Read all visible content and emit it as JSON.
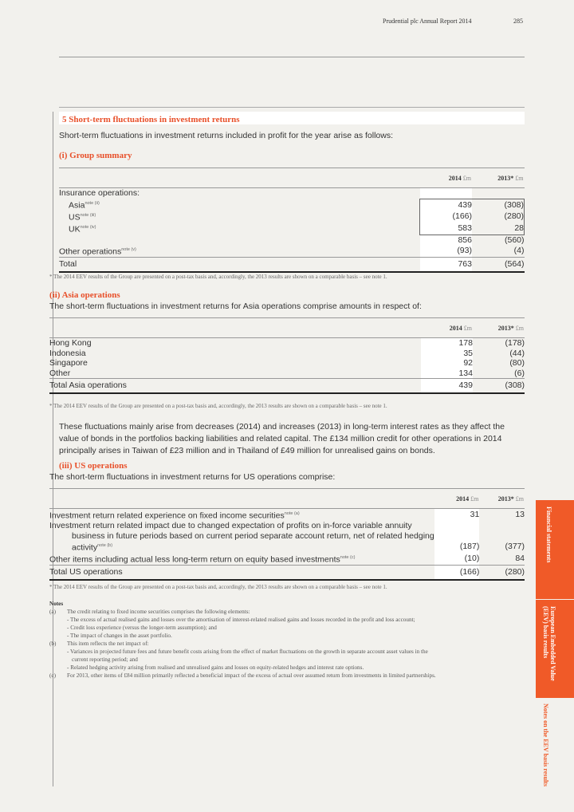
{
  "header": {
    "report": "Prudential plc  Annual Report 2014",
    "page": "285"
  },
  "section": {
    "title": "5 Short-term fluctuations in investment returns",
    "intro": "Short-term fluctuations in investment returns included in profit for the year arise as follows:"
  },
  "cols": {
    "y1": "2014",
    "y2": "2013*",
    "unit": "£m"
  },
  "group": {
    "title": "(i) Group summary",
    "heading": "Insurance operations:",
    "rows": [
      {
        "label": "Asia",
        "note": "note (ii)",
        "v1": "439",
        "v2": "(308)"
      },
      {
        "label": "US",
        "note": "note (iii)",
        "v1": "(166)",
        "v2": "(280)"
      },
      {
        "label": "UK",
        "note": "note (iv)",
        "v1": "583",
        "v2": "28"
      }
    ],
    "subtotal": {
      "v1": "856",
      "v2": "(560)"
    },
    "other": {
      "label": "Other operations",
      "note": "note (v)",
      "v1": "(93)",
      "v2": "(4)"
    },
    "total": {
      "label": "Total",
      "v1": "763",
      "v2": "(564)"
    }
  },
  "footnote": "* The 2014 EEV results of the Group are presented on a post-tax basis and, accordingly, the 2013 results are shown on a comparable basis – see note 1.",
  "asia": {
    "title": "(ii) Asia operations",
    "intro": "The short-term fluctuations in investment returns for Asia operations comprise amounts in respect of:",
    "rows": [
      {
        "label": "Hong Kong",
        "v1": "178",
        "v2": "(178)"
      },
      {
        "label": "Indonesia",
        "v1": "35",
        "v2": "(44)"
      },
      {
        "label": "Singapore",
        "v1": "92",
        "v2": "(80)"
      },
      {
        "label": "Other",
        "v1": "134",
        "v2": "(6)"
      }
    ],
    "total": {
      "label": "Total Asia operations",
      "v1": "439",
      "v2": "(308)"
    }
  },
  "para": "These fluctuations mainly arise from decreases (2014) and increases (2013) in long-term interest rates as they affect the value of bonds in the portfolios backing liabilities and related capital. The £134 million credit for other operations in 2014 principally arises in Taiwan of £23 million and in Thailand of £49 million for unrealised gains on bonds.",
  "us": {
    "title": "(iii) US operations",
    "intro": "The short-term fluctuations in investment returns for US operations comprise:",
    "r1": {
      "label": "Investment return related experience on fixed income securities",
      "note": "note (a)",
      "v1": "31",
      "v2": "13"
    },
    "r2": {
      "l1": "Investment return related impact due to changed expectation of profits on in-force variable annuity",
      "l2": "business in future periods based on current period separate account return, net of related hedging",
      "l3": "activity",
      "note": "note (b)",
      "v1": "(187)",
      "v2": "(377)"
    },
    "r3": {
      "label": "Other items including actual less long-term return on equity based investments",
      "note": "note (c)",
      "v1": "(10)",
      "v2": "84"
    },
    "total": {
      "label": "Total US operations",
      "v1": "(166)",
      "v2": "(280)"
    }
  },
  "notes": {
    "title": "Notes",
    "a": {
      "k": "(a)",
      "t": "The credit relating to fixed income securities comprises the following elements:",
      "d": [
        "- The excess of actual realised gains and losses over the amortisation of interest-related realised gains and losses recorded in the profit and loss account;",
        "- Credit loss experience (versus the longer-term assumption); and",
        "- The impact of changes in the asset portfolio."
      ]
    },
    "b": {
      "k": "(b)",
      "t": "This item reflects the net impact of:",
      "d1": "- Variances in projected future fees and future benefit costs arising from the effect of market fluctuations on the growth in separate account asset values in the",
      "d1b": "current reporting period; and",
      "d2": "- Related hedging activity arising from realised and unrealised gains and losses on equity-related hedges and interest rate options."
    },
    "c": {
      "k": "(c)",
      "t": "For 2013, other items of £84 million primarily reflected a beneficial impact of the excess of actual over assumed return from investments in limited partnerships."
    }
  },
  "side": {
    "tab1": "Financial statements",
    "tab2": "European Embedded Value (EEV) basis results",
    "tab3": "Notes on the EEV basis results"
  },
  "colors": {
    "accent": "#f05a28",
    "background": "#f2f1ed"
  }
}
